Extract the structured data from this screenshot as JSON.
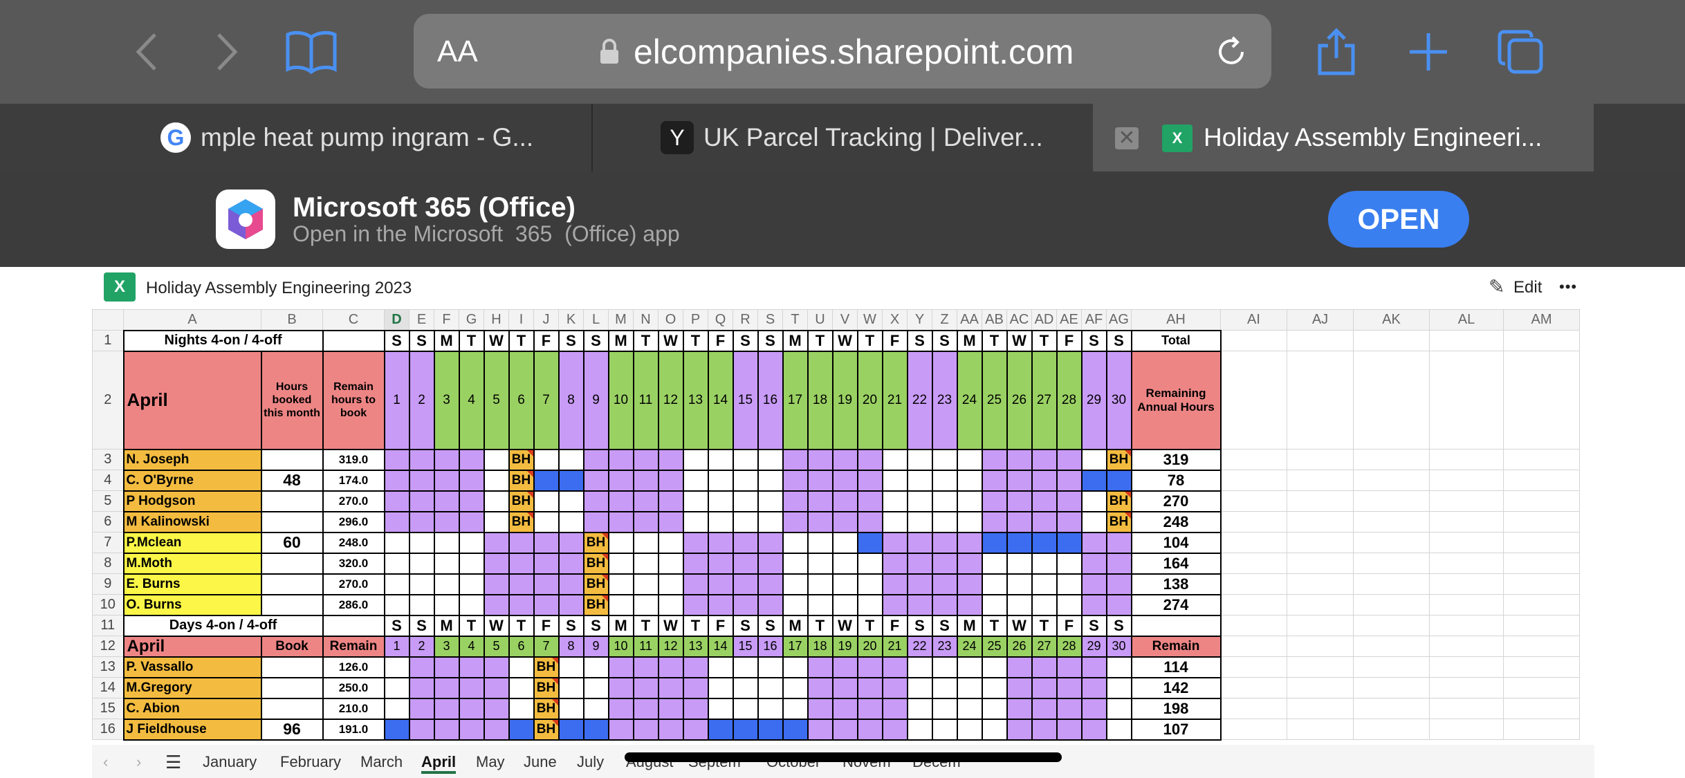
{
  "browser": {
    "aa_label": "AA",
    "url": "elcompanies.sharepoint.com"
  },
  "tabs": [
    {
      "title": "mple heat pump ingram - G...",
      "icon": "google-icon"
    },
    {
      "title": "UK Parcel Tracking | Deliver...",
      "icon": "Y"
    },
    {
      "title": "Holiday Assembly Engineeri...",
      "icon": "excel-icon"
    }
  ],
  "banner": {
    "app_name": "Microsoft 365 (Office)",
    "subtitle": "Open in the Microsoft  365  (Office) app",
    "open_label": "OPEN"
  },
  "workbook": {
    "title": "Holiday Assembly Engineering 2023",
    "edit_label": "Edit",
    "more_label": "•••"
  },
  "columns": [
    "A",
    "B",
    "C",
    "D",
    "E",
    "F",
    "G",
    "H",
    "I",
    "J",
    "K",
    "L",
    "M",
    "N",
    "O",
    "P",
    "Q",
    "R",
    "S",
    "T",
    "U",
    "V",
    "W",
    "X",
    "Y",
    "Z",
    "AA",
    "AB",
    "AC",
    "AD",
    "AE",
    "AF",
    "AG",
    "AH",
    "AI",
    "AJ",
    "AK",
    "AL",
    "AM"
  ],
  "row_numbers": [
    "1",
    "2",
    "3",
    "4",
    "5",
    "6",
    "7",
    "8",
    "9",
    "10",
    "11",
    "12",
    "13",
    "14",
    "15",
    "16"
  ],
  "weekdays": [
    "S",
    "S",
    "M",
    "T",
    "W",
    "T",
    "F",
    "S",
    "S",
    "M",
    "T",
    "W",
    "T",
    "F",
    "S",
    "S",
    "M",
    "T",
    "W",
    "T",
    "F",
    "S",
    "S",
    "M",
    "T",
    "W",
    "T",
    "F",
    "S",
    "S"
  ],
  "days": [
    "1",
    "2",
    "3",
    "4",
    "5",
    "6",
    "7",
    "8",
    "9",
    "10",
    "11",
    "12",
    "13",
    "14",
    "15",
    "16",
    "17",
    "18",
    "19",
    "20",
    "21",
    "22",
    "23",
    "24",
    "25",
    "26",
    "27",
    "28",
    "29",
    "30"
  ],
  "colors": {
    "purple": "#c89bf6",
    "green": "#9ad163",
    "blue": "#3c6df0",
    "orange": "#f3bc40",
    "yellow": "#fbf647",
    "pink": "#ee8585"
  },
  "sheet": {
    "nights_title": "Nights 4-on / 4-off",
    "days_title": "Days 4-on / 4-off",
    "total_label": "Total",
    "month": "April",
    "hours_booked_label": "Hours booked this month",
    "remain_hours_label": "Remain hours to book",
    "remaining_annual_label": "Remaining Annual Hours",
    "book_label": "Book",
    "remain_label": "Remain",
    "remain_label2": "Remain",
    "bh": "BH",
    "night_rows": [
      {
        "name": "N. Joseph",
        "booked": "",
        "remain": "319.0",
        "total": "319"
      },
      {
        "name": "C. O'Byrne",
        "booked": "48",
        "remain": "174.0",
        "total": "78"
      },
      {
        "name": "P Hodgson",
        "booked": "",
        "remain": "270.0",
        "total": "270"
      },
      {
        "name": "M Kalinowski",
        "booked": "",
        "remain": "296.0",
        "total": "248"
      },
      {
        "name": "P.Mclean",
        "booked": "60",
        "remain": "248.0",
        "total": "104"
      },
      {
        "name": "M.Moth",
        "booked": "",
        "remain": "320.0",
        "total": "164"
      },
      {
        "name": "E. Burns",
        "booked": "",
        "remain": "270.0",
        "total": "138"
      },
      {
        "name": "O. Burns",
        "booked": "",
        "remain": "286.0",
        "total": "274"
      }
    ],
    "day_rows": [
      {
        "name": "P. Vassallo",
        "booked": "",
        "remain": "126.0",
        "total": "114"
      },
      {
        "name": "M.Gregory",
        "booked": "",
        "remain": "250.0",
        "total": "142"
      },
      {
        "name": "C. Abion",
        "booked": "",
        "remain": "210.0",
        "total": "198"
      },
      {
        "name": "J Fieldhouse",
        "booked": "96",
        "remain": "191.0",
        "total": "107"
      }
    ]
  },
  "sheet_tabs": [
    "January",
    "February",
    "March",
    "April",
    "May",
    "June",
    "July",
    "August",
    "Septem",
    "October",
    "Novem",
    "Decem"
  ],
  "active_sheet": "April"
}
